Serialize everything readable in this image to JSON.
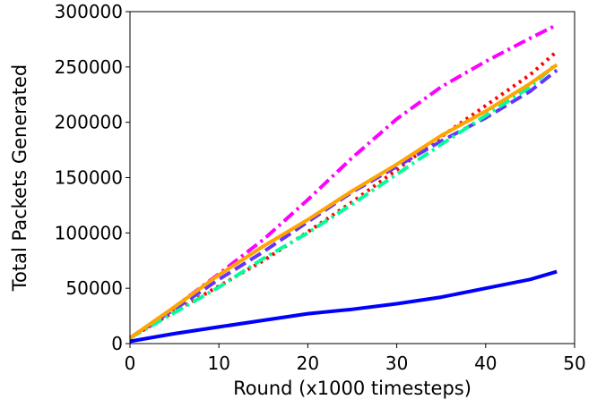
{
  "chart_data": {
    "type": "line",
    "title": "",
    "xlabel": "Round (x1000 timesteps)",
    "ylabel": "Total Packets Generated",
    "xlim": [
      0,
      50
    ],
    "ylim": [
      0,
      300000
    ],
    "x_ticks": [
      0,
      10,
      20,
      30,
      40,
      50
    ],
    "y_ticks": [
      0,
      50000,
      100000,
      150000,
      200000,
      250000,
      300000
    ],
    "grid": false,
    "legend": "none",
    "series": [
      {
        "color": "#ff00ff",
        "dash": "dashdot",
        "x": [
          0,
          5,
          10,
          15,
          20,
          25,
          30,
          35,
          40,
          45,
          48
        ],
        "y": [
          5000,
          33000,
          63000,
          94000,
          130000,
          168000,
          203000,
          232000,
          255000,
          276000,
          288000
        ]
      },
      {
        "color": "#ff0000",
        "dash": "dotted",
        "x": [
          0,
          5,
          10,
          15,
          20,
          25,
          30,
          35,
          40,
          45,
          48
        ],
        "y": [
          5000,
          29000,
          52000,
          75000,
          101000,
          128000,
          157000,
          187000,
          215000,
          243000,
          264000
        ]
      },
      {
        "color": "#6633ff",
        "dash": "dashed",
        "x": [
          0,
          5,
          10,
          15,
          20,
          25,
          30,
          35,
          40,
          45,
          48
        ],
        "y": [
          5000,
          31000,
          58000,
          83000,
          110000,
          137000,
          160000,
          183000,
          204000,
          228000,
          247000
        ]
      },
      {
        "color": "#00ff99",
        "dash": "dashdot",
        "x": [
          0,
          5,
          10,
          15,
          20,
          25,
          30,
          35,
          40,
          45,
          48
        ],
        "y": [
          5000,
          28000,
          51000,
          77000,
          100000,
          126000,
          153000,
          180000,
          206000,
          232000,
          253000
        ]
      },
      {
        "color": "#ffa500",
        "dash": "solid",
        "x": [
          0,
          5,
          10,
          15,
          20,
          25,
          30,
          35,
          40,
          45,
          48
        ],
        "y": [
          5000,
          33000,
          62000,
          88000,
          112000,
          138000,
          162000,
          188000,
          210000,
          235000,
          252000
        ]
      },
      {
        "color": "#0000ff",
        "dash": "solid",
        "x": [
          0,
          5,
          10,
          15,
          20,
          25,
          30,
          35,
          40,
          45,
          48
        ],
        "y": [
          2000,
          9000,
          15000,
          21000,
          27000,
          31000,
          36000,
          42000,
          50000,
          58000,
          65000
        ]
      }
    ]
  }
}
